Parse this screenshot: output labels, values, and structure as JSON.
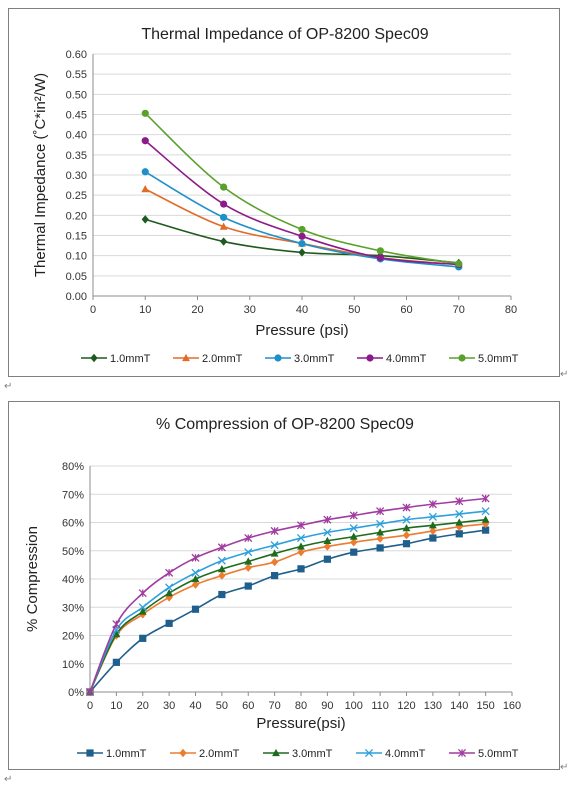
{
  "chart_data": [
    {
      "type": "line",
      "title": "Thermal Impedance of OP-8200 Spec09",
      "xlabel": "Pressure (psi)",
      "ylabel": "Thermal Impedance (˚C*in²/W)",
      "xlim": [
        0,
        80
      ],
      "ylim": [
        0,
        0.6
      ],
      "xticks": [
        0,
        10,
        20,
        30,
        40,
        50,
        60,
        70,
        80
      ],
      "yticks": [
        0,
        0.05,
        0.1,
        0.15,
        0.2,
        0.25,
        0.3,
        0.35,
        0.4,
        0.45,
        0.5,
        0.55,
        0.6
      ],
      "ytick_labels": [
        "0.00",
        "0.05",
        "0.10",
        "0.15",
        "0.20",
        "0.25",
        "0.30",
        "0.35",
        "0.40",
        "0.45",
        "0.50",
        "0.55",
        "0.60"
      ],
      "grid": true,
      "legend_position": "bottom",
      "x": [
        10,
        25,
        40,
        55,
        70
      ],
      "series": [
        {
          "name": "1.0mmT",
          "color": "#1e5a1e",
          "marker": "diamond",
          "values": [
            0.19,
            0.135,
            0.108,
            0.1,
            0.082
          ]
        },
        {
          "name": "2.0mmT",
          "color": "#e26b28",
          "marker": "triangle",
          "values": [
            0.265,
            0.172,
            0.13,
            0.095,
            0.078
          ]
        },
        {
          "name": "3.0mmT",
          "color": "#1e90c8",
          "marker": "circle",
          "values": [
            0.308,
            0.195,
            0.13,
            0.092,
            0.072
          ]
        },
        {
          "name": "4.0mmT",
          "color": "#8b1a8b",
          "marker": "circle",
          "values": [
            0.385,
            0.228,
            0.148,
            0.095,
            0.078
          ]
        },
        {
          "name": "5.0mmT",
          "color": "#5aa02c",
          "marker": "circle",
          "values": [
            0.453,
            0.27,
            0.165,
            0.112,
            0.08
          ]
        }
      ]
    },
    {
      "type": "line",
      "title": "% Compression of OP-8200 Spec09",
      "xlabel": "Pressure(psi)",
      "ylabel": "% Compression",
      "xlim": [
        0,
        160
      ],
      "ylim": [
        0,
        80
      ],
      "xticks": [
        0,
        10,
        20,
        30,
        40,
        50,
        60,
        70,
        80,
        90,
        100,
        110,
        120,
        130,
        140,
        150,
        160
      ],
      "yticks": [
        0,
        10,
        20,
        30,
        40,
        50,
        60,
        70,
        80
      ],
      "ytick_labels": [
        "0%",
        "10%",
        "20%",
        "30%",
        "40%",
        "50%",
        "60%",
        "70%",
        "80%"
      ],
      "grid": true,
      "legend_position": "bottom",
      "x": [
        0,
        10,
        20,
        30,
        40,
        50,
        60,
        70,
        80,
        90,
        100,
        110,
        120,
        130,
        140,
        150
      ],
      "series": [
        {
          "name": "1.0mmT",
          "color": "#1f5f8b",
          "marker": "square",
          "values": [
            0,
            10.5,
            19,
            24.3,
            29.3,
            34.5,
            37.5,
            41.2,
            43.6,
            47,
            49.5,
            51,
            52.5,
            54.5,
            56,
            57.3
          ]
        },
        {
          "name": "2.0mmT",
          "color": "#ec7c30",
          "marker": "diamond",
          "values": [
            0,
            20,
            27.5,
            33.5,
            38,
            41.2,
            44,
            46,
            49.5,
            51.5,
            53,
            54.3,
            55.5,
            57,
            58.5,
            59.5
          ]
        },
        {
          "name": "3.0mmT",
          "color": "#1e6b1e",
          "marker": "triangle",
          "values": [
            0,
            20.5,
            28.5,
            35,
            40,
            43.5,
            46.2,
            49,
            51.5,
            53.5,
            55,
            56.5,
            58,
            59,
            60,
            61
          ]
        },
        {
          "name": "4.0mmT",
          "color": "#2ea0dc",
          "marker": "x",
          "values": [
            0,
            22,
            30,
            37,
            42.2,
            46.5,
            49.5,
            52,
            54.5,
            56.5,
            58,
            59.5,
            61,
            62,
            63,
            64
          ]
        },
        {
          "name": "5.0mmT",
          "color": "#a03ca0",
          "marker": "star",
          "values": [
            0,
            24,
            35,
            42.2,
            47.5,
            51.2,
            54.5,
            57,
            59,
            61,
            62.5,
            64,
            65.3,
            66.5,
            67.5,
            68.5
          ]
        }
      ]
    }
  ]
}
